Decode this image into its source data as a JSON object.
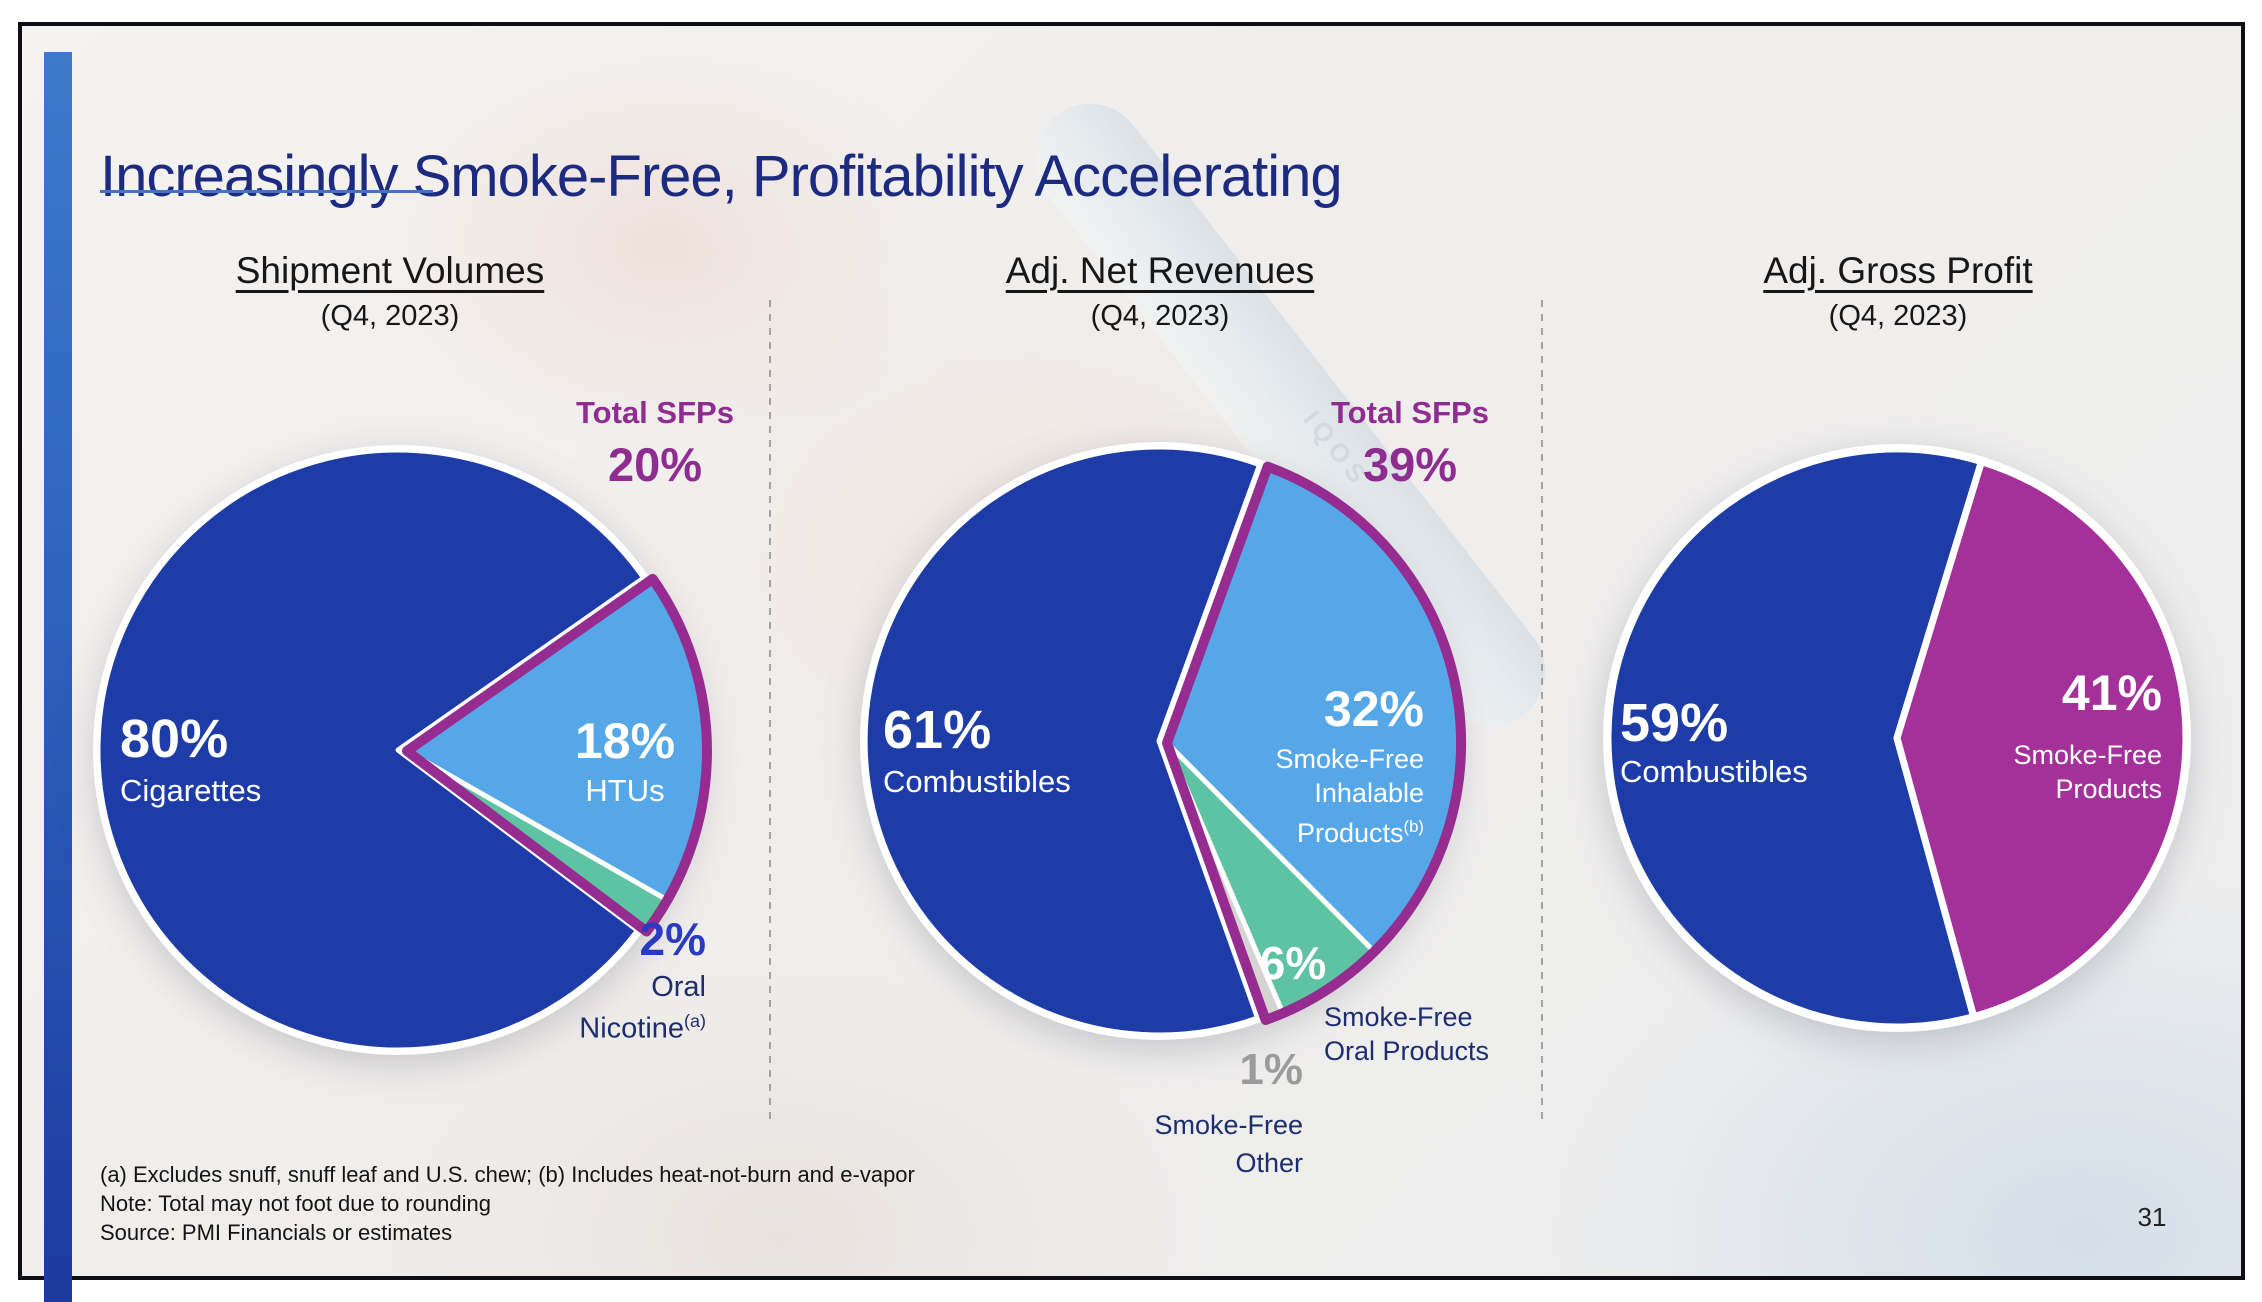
{
  "slide": {
    "title": "Increasingly Smoke-Free, Profitability Accelerating",
    "page_number": "31",
    "footnotes": [
      "(a) Excludes snuff, snuff leaf and U.S. chew; (b) Includes heat-not-burn and e-vapor",
      "Note: Total may not foot due to rounding",
      "Source: PMI Financials or estimates"
    ],
    "background": {
      "device_label": "IQOS"
    }
  },
  "colors": {
    "title_navy": "#1c2b80",
    "underline_blue": "#4472c4",
    "dark_blue": "#1e3ca8",
    "light_blue": "#55a7e8",
    "teal": "#5ec3a2",
    "gray_slice": "#d6d4d2",
    "magenta": "#a4309a",
    "sfp_outline": "#962b90",
    "sfp_text": "#8e2d8f",
    "navy_label": "#1c2e6e",
    "bright_blue_label": "#2a3bc0",
    "gray_label": "#9b9b9b",
    "slice_gap": "#ffffff"
  },
  "chart_data": [
    {
      "type": "pie",
      "title": "Shipment Volumes",
      "subtitle": "(Q4, 2023)",
      "total_callout": {
        "label": "Total SFPs",
        "value_pct": 20,
        "value_label": "20%"
      },
      "start_angle_deg": -35,
      "slices": [
        {
          "name": "Cigarettes",
          "value_pct": 80,
          "pct_label": "80%",
          "color": "#1e3ca8",
          "in_sfp": false,
          "label_lines": [
            "Cigarettes"
          ]
        },
        {
          "name": "HTUs",
          "value_pct": 18,
          "pct_label": "18%",
          "color": "#55a7e8",
          "in_sfp": true,
          "label_lines": [
            "HTUs"
          ]
        },
        {
          "name": "Oral Nicotine",
          "value_pct": 2,
          "pct_label": "2%",
          "color": "#5ec3a2",
          "in_sfp": true,
          "label_lines": [
            "Oral",
            "Nicotine"
          ],
          "label_sup": "(a)"
        }
      ]
    },
    {
      "type": "pie",
      "title": "Adj. Net Revenues",
      "subtitle": "(Q4, 2023)",
      "total_callout": {
        "label": "Total SFPs",
        "value_pct": 39,
        "value_label": "39%"
      },
      "start_angle_deg": -70,
      "slices": [
        {
          "name": "Combustibles",
          "value_pct": 61,
          "pct_label": "61%",
          "color": "#1e3ca8",
          "in_sfp": false,
          "label_lines": [
            "Combustibles"
          ]
        },
        {
          "name": "Smoke-Free Inhalable Products",
          "value_pct": 32,
          "pct_label": "32%",
          "color": "#55a7e8",
          "in_sfp": true,
          "label_lines": [
            "Smoke-Free",
            "Inhalable",
            "Products"
          ],
          "label_sup": "(b)"
        },
        {
          "name": "Smoke-Free Oral Products",
          "value_pct": 6,
          "pct_label": "6%",
          "color": "#5ec3a2",
          "in_sfp": true,
          "label_lines": [
            "Smoke-Free",
            "Oral Products"
          ]
        },
        {
          "name": "Smoke-Free Other",
          "value_pct": 1,
          "pct_label": "1%",
          "color": "#d6d4d2",
          "in_sfp": true,
          "label_lines": [
            "Smoke-Free",
            "Other"
          ]
        }
      ]
    },
    {
      "type": "pie",
      "title": "Adj. Gross Profit",
      "subtitle": "(Q4, 2023)",
      "start_angle_deg": -73,
      "slices": [
        {
          "name": "Combustibles",
          "value_pct": 59,
          "pct_label": "59%",
          "color": "#1e3ca8",
          "in_sfp": false,
          "label_lines": [
            "Combustibles"
          ]
        },
        {
          "name": "Smoke-Free Products",
          "value_pct": 41,
          "pct_label": "41%",
          "color": "#a4309a",
          "in_sfp": true,
          "label_lines": [
            "Smoke-Free",
            "Products"
          ]
        }
      ]
    }
  ]
}
